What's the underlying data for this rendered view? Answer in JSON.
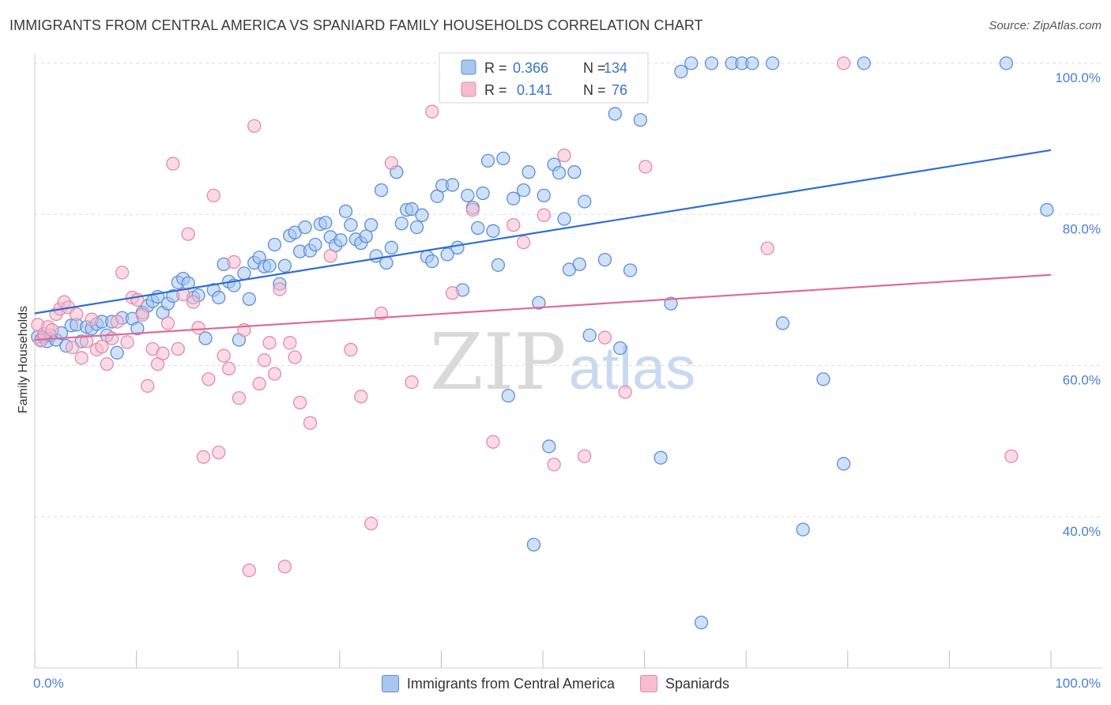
{
  "header": {
    "title": "IMMIGRANTS FROM CENTRAL AMERICA VS SPANIARD FAMILY HOUSEHOLDS CORRELATION CHART",
    "source": "Source: ZipAtlas.com"
  },
  "watermark": {
    "zip": "ZIP",
    "atlas": "atlas"
  },
  "colors": {
    "blue_fill": "#a9c6f0",
    "blue_stroke": "#5b8fd8",
    "blue_line": "#2f6fd0",
    "pink_fill": "#f6bdd0",
    "pink_stroke": "#e48aaa",
    "pink_line": "#e06a96",
    "tick_color": "#4a7fd0",
    "grid": "#dddddd"
  },
  "legend": {
    "r_label": "R =",
    "n_label": "N =",
    "rows": [
      {
        "r": "0.366",
        "n": "134"
      },
      {
        "r": "0.141",
        "n": "76"
      }
    ]
  },
  "chart_data": {
    "type": "scatter",
    "ylabel": "Family Households",
    "xlim": [
      0,
      100
    ],
    "ylim": [
      20,
      100
    ],
    "x_tick_labels": [
      "0.0%",
      "100.0%"
    ],
    "y_ticks": [
      40,
      60,
      80,
      100
    ],
    "y_tick_labels": [
      "40.0%",
      "60.0%",
      "80.0%",
      "100.0%"
    ],
    "grid": "horizontal dashed",
    "legend_position": "top-center",
    "series": [
      {
        "name": "Immigrants from Central America",
        "trend": [
          [
            0,
            66.9
          ],
          [
            100,
            88.5
          ]
        ],
        "points": [
          [
            0.3,
            63.8
          ],
          [
            0.6,
            63.4
          ],
          [
            0.9,
            63.8
          ],
          [
            1.2,
            63.2
          ],
          [
            1.6,
            64.0
          ],
          [
            2.1,
            63.4
          ],
          [
            2.6,
            64.3
          ],
          [
            3.1,
            62.6
          ],
          [
            3.6,
            65.3
          ],
          [
            4.1,
            65.4
          ],
          [
            4.6,
            63.2
          ],
          [
            5.1,
            65.1
          ],
          [
            5.6,
            64.9
          ],
          [
            6.1,
            65.5
          ],
          [
            6.6,
            65.8
          ],
          [
            7.1,
            64.0
          ],
          [
            7.6,
            65.8
          ],
          [
            8.1,
            61.7
          ],
          [
            8.6,
            66.3
          ],
          [
            9.6,
            66.2
          ],
          [
            10.1,
            64.9
          ],
          [
            10.6,
            67.0
          ],
          [
            11.1,
            67.9
          ],
          [
            11.6,
            68.5
          ],
          [
            12.1,
            69.1
          ],
          [
            12.6,
            67.0
          ],
          [
            13.1,
            68.2
          ],
          [
            13.6,
            69.2
          ],
          [
            14.1,
            71.0
          ],
          [
            14.6,
            71.5
          ],
          [
            15.1,
            70.9
          ],
          [
            15.6,
            69.0
          ],
          [
            16.1,
            69.3
          ],
          [
            16.8,
            63.6
          ],
          [
            17.6,
            70.0
          ],
          [
            18.1,
            69.0
          ],
          [
            18.6,
            73.4
          ],
          [
            19.1,
            71.1
          ],
          [
            19.6,
            70.6
          ],
          [
            20.1,
            63.4
          ],
          [
            20.6,
            72.2
          ],
          [
            21.1,
            68.8
          ],
          [
            21.6,
            73.6
          ],
          [
            22.1,
            74.3
          ],
          [
            22.6,
            73.1
          ],
          [
            23.1,
            73.2
          ],
          [
            23.6,
            76.0
          ],
          [
            24.1,
            70.8
          ],
          [
            24.6,
            73.2
          ],
          [
            25.1,
            77.2
          ],
          [
            25.6,
            77.6
          ],
          [
            26.1,
            75.1
          ],
          [
            26.6,
            78.3
          ],
          [
            27.1,
            75.2
          ],
          [
            27.6,
            76.0
          ],
          [
            28.1,
            78.7
          ],
          [
            28.6,
            78.9
          ],
          [
            29.1,
            77.0
          ],
          [
            29.6,
            75.9
          ],
          [
            30.1,
            76.6
          ],
          [
            30.6,
            80.4
          ],
          [
            31.1,
            78.6
          ],
          [
            31.6,
            76.7
          ],
          [
            32.1,
            76.2
          ],
          [
            32.6,
            77.1
          ],
          [
            33.1,
            78.6
          ],
          [
            33.6,
            74.5
          ],
          [
            34.1,
            83.2
          ],
          [
            34.6,
            73.6
          ],
          [
            35.1,
            75.6
          ],
          [
            35.6,
            85.6
          ],
          [
            36.1,
            78.8
          ],
          [
            36.6,
            80.6
          ],
          [
            37.1,
            80.7
          ],
          [
            37.6,
            78.3
          ],
          [
            38.1,
            79.9
          ],
          [
            38.6,
            74.4
          ],
          [
            39.1,
            73.8
          ],
          [
            39.6,
            82.4
          ],
          [
            40.1,
            83.8
          ],
          [
            40.6,
            74.7
          ],
          [
            41.1,
            83.9
          ],
          [
            41.6,
            75.6
          ],
          [
            42.1,
            70.0
          ],
          [
            42.6,
            82.5
          ],
          [
            43.1,
            80.9
          ],
          [
            43.6,
            78.2
          ],
          [
            44.1,
            82.8
          ],
          [
            44.6,
            87.1
          ],
          [
            45.1,
            77.8
          ],
          [
            45.6,
            73.3
          ],
          [
            46.1,
            87.4
          ],
          [
            46.6,
            56.0
          ],
          [
            47.1,
            82.1
          ],
          [
            47.6,
            95.8
          ],
          [
            48.1,
            83.2
          ],
          [
            48.6,
            85.6
          ],
          [
            49.1,
            36.3
          ],
          [
            49.6,
            68.3
          ],
          [
            50.1,
            82.5
          ],
          [
            50.6,
            49.3
          ],
          [
            51.1,
            86.6
          ],
          [
            51.6,
            85.5
          ],
          [
            52.1,
            79.4
          ],
          [
            52.6,
            72.7
          ],
          [
            53.1,
            85.6
          ],
          [
            53.6,
            73.4
          ],
          [
            54.1,
            81.7
          ],
          [
            54.6,
            64.0
          ],
          [
            55.1,
            100.0
          ],
          [
            56.1,
            74.0
          ],
          [
            57.1,
            93.3
          ],
          [
            57.6,
            62.3
          ],
          [
            58.6,
            72.6
          ],
          [
            59.6,
            92.5
          ],
          [
            61.6,
            47.8
          ],
          [
            62.6,
            68.2
          ],
          [
            63.6,
            98.9
          ],
          [
            64.6,
            100.0
          ],
          [
            65.6,
            26.0
          ],
          [
            66.6,
            100.0
          ],
          [
            68.6,
            100.0
          ],
          [
            69.6,
            100.0
          ],
          [
            70.6,
            100.0
          ],
          [
            72.6,
            100.0
          ],
          [
            73.6,
            65.6
          ],
          [
            75.6,
            38.3
          ],
          [
            77.6,
            58.2
          ],
          [
            79.6,
            47.0
          ],
          [
            81.6,
            100.0
          ],
          [
            95.6,
            100.0
          ],
          [
            99.6,
            80.6
          ]
        ]
      },
      {
        "name": "Spaniards",
        "trend": [
          [
            0,
            63.4
          ],
          [
            100,
            72.0
          ]
        ],
        "points": [
          [
            0.3,
            65.4
          ],
          [
            0.6,
            63.3
          ],
          [
            0.9,
            64.2
          ],
          [
            1.3,
            65.1
          ],
          [
            1.7,
            64.7
          ],
          [
            2.1,
            66.8
          ],
          [
            2.5,
            67.5
          ],
          [
            2.9,
            68.4
          ],
          [
            3.3,
            67.7
          ],
          [
            3.7,
            62.4
          ],
          [
            4.1,
            66.8
          ],
          [
            4.6,
            61.0
          ],
          [
            5.1,
            63.2
          ],
          [
            5.6,
            66.1
          ],
          [
            6.1,
            62.1
          ],
          [
            6.6,
            62.5
          ],
          [
            7.1,
            60.2
          ],
          [
            7.6,
            63.6
          ],
          [
            8.1,
            65.8
          ],
          [
            8.6,
            72.3
          ],
          [
            9.1,
            63.1
          ],
          [
            9.6,
            69.0
          ],
          [
            10.1,
            68.7
          ],
          [
            10.6,
            66.7
          ],
          [
            11.1,
            57.3
          ],
          [
            11.6,
            62.2
          ],
          [
            12.1,
            60.2
          ],
          [
            12.6,
            61.6
          ],
          [
            13.1,
            65.6
          ],
          [
            13.6,
            86.7
          ],
          [
            14.1,
            62.2
          ],
          [
            14.6,
            69.4
          ],
          [
            15.1,
            77.4
          ],
          [
            15.6,
            68.4
          ],
          [
            16.1,
            65.0
          ],
          [
            16.6,
            47.9
          ],
          [
            17.1,
            58.2
          ],
          [
            17.6,
            82.5
          ],
          [
            18.1,
            48.5
          ],
          [
            18.6,
            61.3
          ],
          [
            19.1,
            59.6
          ],
          [
            19.6,
            73.7
          ],
          [
            20.1,
            55.7
          ],
          [
            20.6,
            64.7
          ],
          [
            21.1,
            32.9
          ],
          [
            21.6,
            91.7
          ],
          [
            22.1,
            57.6
          ],
          [
            22.6,
            60.7
          ],
          [
            23.1,
            63.0
          ],
          [
            23.6,
            58.9
          ],
          [
            24.1,
            70.1
          ],
          [
            24.6,
            33.4
          ],
          [
            25.1,
            63.0
          ],
          [
            25.6,
            61.1
          ],
          [
            26.1,
            55.1
          ],
          [
            27.1,
            52.4
          ],
          [
            29.1,
            74.5
          ],
          [
            31.1,
            62.1
          ],
          [
            32.1,
            55.9
          ],
          [
            33.1,
            39.1
          ],
          [
            34.1,
            66.9
          ],
          [
            35.1,
            86.8
          ],
          [
            37.1,
            57.8
          ],
          [
            39.1,
            93.6
          ],
          [
            41.1,
            69.6
          ],
          [
            43.1,
            80.6
          ],
          [
            45.1,
            49.9
          ],
          [
            47.1,
            78.6
          ],
          [
            48.1,
            76.3
          ],
          [
            50.1,
            79.9
          ],
          [
            51.1,
            46.9
          ],
          [
            52.1,
            87.8
          ],
          [
            54.1,
            48.0
          ],
          [
            56.1,
            63.7
          ],
          [
            58.1,
            56.5
          ],
          [
            60.1,
            86.3
          ],
          [
            72.1,
            75.5
          ],
          [
            79.6,
            100.0
          ],
          [
            96.1,
            48.0
          ]
        ]
      }
    ]
  }
}
